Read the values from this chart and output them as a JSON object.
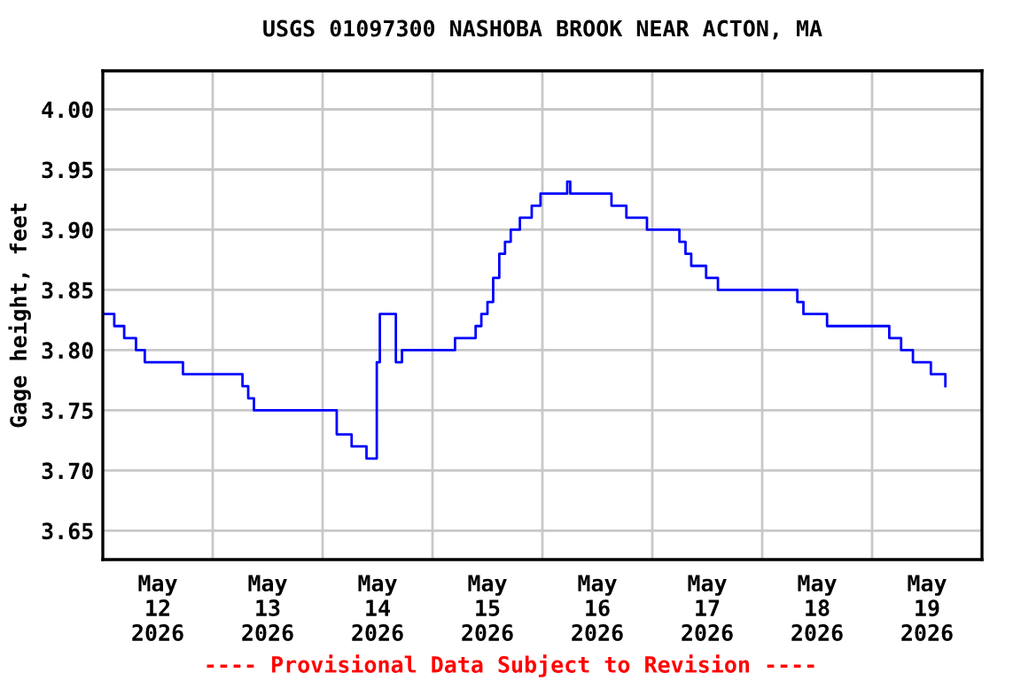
{
  "chart_data": {
    "type": "step",
    "title": "USGS 01097300 NASHOBA BROOK NEAR ACTON, MA",
    "ylabel": "Gage height, feet",
    "annotations": [
      "---- Provisional Data Subject to Revision ----"
    ],
    "x": [
      "2026-05-12T00:00",
      "2026-05-12T02:30",
      "2026-05-12T04:40",
      "2026-05-12T07:15",
      "2026-05-12T09:10",
      "2026-05-12T17:30",
      "2026-05-13T04:30",
      "2026-05-13T06:30",
      "2026-05-13T07:45",
      "2026-05-13T09:00",
      "2026-05-13T23:50",
      "2026-05-14T03:05",
      "2026-05-14T06:20",
      "2026-05-14T09:35",
      "2026-05-14T11:45",
      "2026-05-14T11:50",
      "2026-05-14T12:30",
      "2026-05-14T13:25",
      "2026-05-14T16:00",
      "2026-05-14T17:20",
      "2026-05-15T03:35",
      "2026-05-15T04:55",
      "2026-05-15T09:25",
      "2026-05-15T10:40",
      "2026-05-15T12:00",
      "2026-05-15T13:15",
      "2026-05-15T14:35",
      "2026-05-15T15:50",
      "2026-05-15T17:05",
      "2026-05-15T19:05",
      "2026-05-15T21:40",
      "2026-05-15T23:35",
      "2026-05-16T02:50",
      "2026-05-16T05:25",
      "2026-05-16T06:05",
      "2026-05-16T11:55",
      "2026-05-16T15:05",
      "2026-05-16T18:20",
      "2026-05-16T22:50",
      "2026-05-17T05:55",
      "2026-05-17T07:15",
      "2026-05-17T08:30",
      "2026-05-17T11:45",
      "2026-05-17T14:20",
      "2026-05-18T07:40",
      "2026-05-18T09:00",
      "2026-05-18T14:10",
      "2026-05-19T03:45",
      "2026-05-19T06:20",
      "2026-05-19T08:55",
      "2026-05-19T12:50",
      "2026-05-19T16:00"
    ],
    "series": [
      {
        "color": "#0000ff",
        "values": [
          3.83,
          3.82,
          3.81,
          3.8,
          3.79,
          3.78,
          3.78,
          3.77,
          3.76,
          3.75,
          3.75,
          3.73,
          3.72,
          3.71,
          3.71,
          3.79,
          3.83,
          3.83,
          3.79,
          3.8,
          3.8,
          3.81,
          3.82,
          3.83,
          3.84,
          3.86,
          3.88,
          3.89,
          3.9,
          3.91,
          3.92,
          3.93,
          3.93,
          3.94,
          3.93,
          3.93,
          3.92,
          3.91,
          3.9,
          3.89,
          3.88,
          3.87,
          3.86,
          3.85,
          3.84,
          3.83,
          3.82,
          3.81,
          3.8,
          3.79,
          3.78,
          3.77
        ]
      }
    ],
    "xlim": [
      "2026-05-12T00:00",
      "2026-05-20T00:00"
    ],
    "xticks": [
      {
        "value": "2026-05-12T12:00",
        "label": "May\n12\n2026"
      },
      {
        "value": "2026-05-13T12:00",
        "label": "May\n13\n2026"
      },
      {
        "value": "2026-05-14T12:00",
        "label": "May\n14\n2026"
      },
      {
        "value": "2026-05-15T12:00",
        "label": "May\n15\n2026"
      },
      {
        "value": "2026-05-16T12:00",
        "label": "May\n16\n2026"
      },
      {
        "value": "2026-05-17T12:00",
        "label": "May\n17\n2026"
      },
      {
        "value": "2026-05-18T12:00",
        "label": "May\n18\n2026"
      },
      {
        "value": "2026-05-19T12:00",
        "label": "May\n19\n2026"
      },
      {
        "value": "2026-05-13T00:00",
        "label": null
      },
      {
        "value": "2026-05-14T00:00",
        "label": null
      },
      {
        "value": "2026-05-15T00:00",
        "label": null
      },
      {
        "value": "2026-05-16T00:00",
        "label": null
      },
      {
        "value": "2026-05-17T00:00",
        "label": null
      },
      {
        "value": "2026-05-18T00:00",
        "label": null
      },
      {
        "value": "2026-05-19T00:00",
        "label": null
      }
    ],
    "ylim": [
      3.626,
      4.032
    ],
    "yticks": [
      {
        "value": 3.65,
        "label": "3.65"
      },
      {
        "value": 3.7,
        "label": "3.70"
      },
      {
        "value": 3.75,
        "label": "3.75"
      },
      {
        "value": 3.8,
        "label": "3.80"
      },
      {
        "value": 3.85,
        "label": "3.85"
      },
      {
        "value": 3.9,
        "label": "3.90"
      },
      {
        "value": 3.95,
        "label": "3.95"
      },
      {
        "value": 4.0,
        "label": "4.00"
      }
    ],
    "grid": true,
    "legend": false
  }
}
